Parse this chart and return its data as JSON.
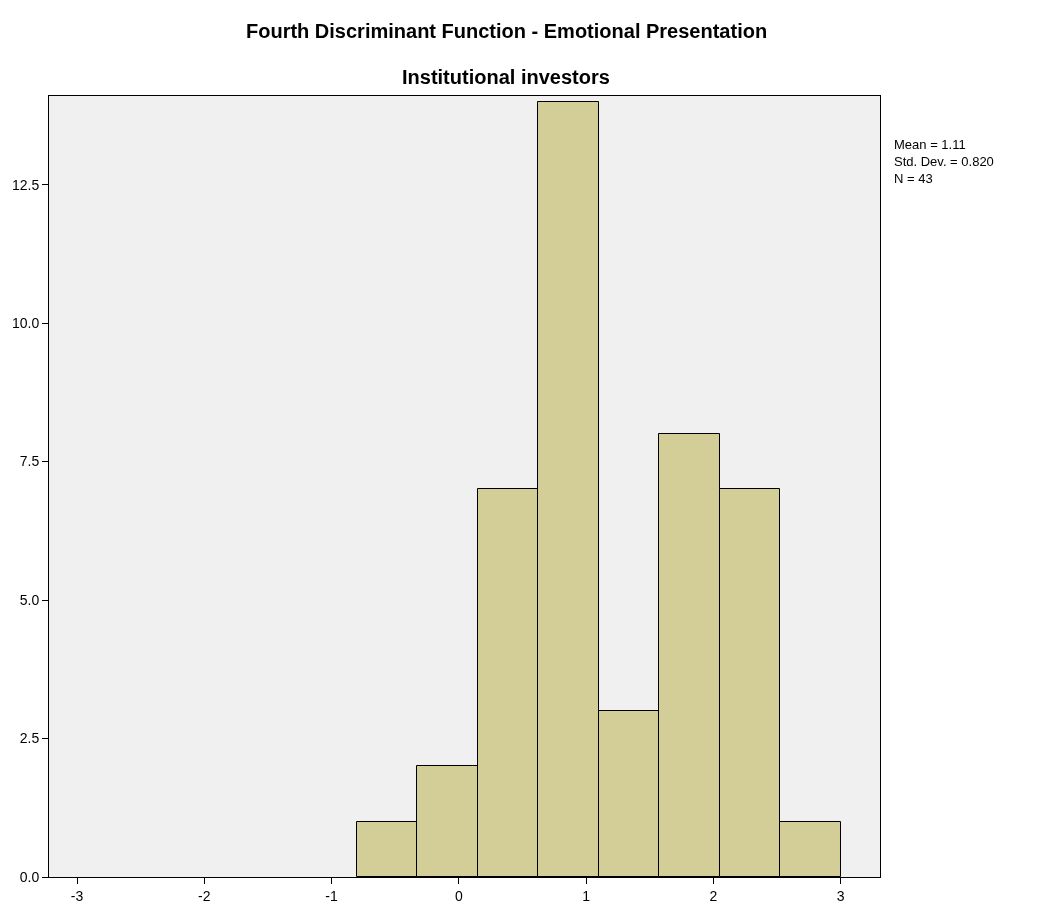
{
  "chart_data": {
    "type": "histogram",
    "title": "Fourth Discriminant Function - Emotional Presentation",
    "subtitle": "Institutional investors",
    "bins": [
      -0.8,
      -0.325,
      0.15,
      0.625,
      1.1,
      1.575,
      2.05,
      2.525,
      3.0
    ],
    "values": [
      1,
      2,
      7,
      14,
      3,
      8,
      7,
      1
    ],
    "color": "#d3ce97",
    "xlim": [
      -3.22,
      3.31
    ],
    "xticks": [
      -3,
      -2,
      -1,
      0,
      1,
      2,
      3
    ],
    "ylim": [
      0,
      14.1
    ],
    "yticks": [
      {
        "value": 0,
        "label": "0.0"
      },
      {
        "value": 2.5,
        "label": "2.5"
      },
      {
        "value": 5,
        "label": "5.0"
      },
      {
        "value": 7.5,
        "label": "7.5"
      },
      {
        "value": 10,
        "label": "10.0"
      },
      {
        "value": 12.5,
        "label": "12.5"
      }
    ],
    "grid": false,
    "annotations": [
      "Mean = 1.11",
      "Std. Dev. = 0.820",
      "N = 43"
    ]
  }
}
